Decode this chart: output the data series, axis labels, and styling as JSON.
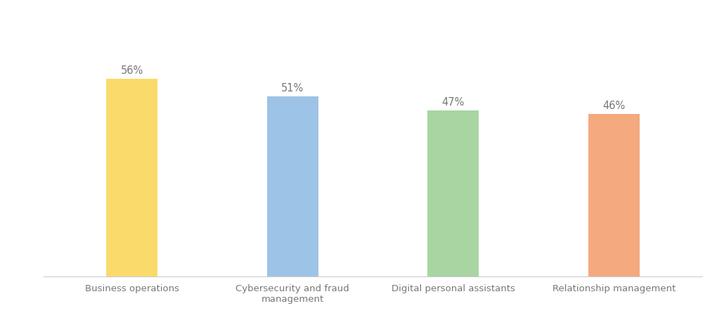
{
  "categories": [
    "Business operations",
    "Cybersecurity and fraud\nmanagement",
    "Digital personal assistants",
    "Relationship management"
  ],
  "values": [
    56,
    51,
    47,
    46
  ],
  "bar_colors": [
    "#FADA6B",
    "#9DC3E6",
    "#A8D5A2",
    "#F4A97F"
  ],
  "label_texts": [
    "56%",
    "51%",
    "47%",
    "46%"
  ],
  "background_color": "#ffffff",
  "text_color": "#777777",
  "label_fontsize": 10.5,
  "tick_fontsize": 9.5,
  "ylim": [
    0,
    72
  ],
  "bar_width": 0.32,
  "xlim_left": -0.55,
  "xlim_right": 3.55
}
